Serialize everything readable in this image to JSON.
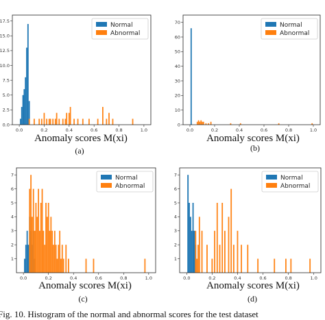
{
  "caption": "Fig. 10.   Histogram of the normal and abnormal scores for the test dataset",
  "colors": {
    "normal": "#1f77b4",
    "abnormal": "#ff7f0e"
  },
  "chart_data": [
    {
      "type": "bar",
      "xlabel": "Anomaly scores M(xi)",
      "sublabel": "(a)",
      "legend": "top-right",
      "xlim": [
        0,
        1
      ],
      "ylim": [
        0,
        18.5
      ],
      "xticks": [
        0.0,
        0.2,
        0.4,
        0.6,
        0.8,
        1.0
      ],
      "yticks": [
        0.0,
        2.5,
        5.0,
        7.5,
        10.0,
        12.5,
        15.0,
        17.5
      ],
      "ytick_labels": [
        "0.0",
        "2.5",
        "5.0",
        "7.5",
        "10.0",
        "12.5",
        "15.0",
        "17.5"
      ],
      "bin_width": 0.01,
      "series": [
        {
          "name": "Normal",
          "x": [
            0.01,
            0.02,
            0.03,
            0.04,
            0.05,
            0.06,
            0.07,
            0.08
          ],
          "values": [
            1,
            3,
            5,
            6,
            8,
            13,
            17,
            4
          ]
        },
        {
          "name": "Abnormal",
          "x": [
            0.08,
            0.12,
            0.16,
            0.18,
            0.2,
            0.22,
            0.24,
            0.25,
            0.27,
            0.29,
            0.3,
            0.32,
            0.35,
            0.37,
            0.38,
            0.4,
            0.41,
            0.44,
            0.47,
            0.51,
            0.56,
            0.63,
            0.67,
            0.7,
            0.72,
            0.75,
            0.91
          ],
          "values": [
            1,
            1,
            1,
            1,
            2,
            1,
            1,
            1,
            1,
            1,
            2,
            1,
            1,
            1,
            2,
            2,
            3,
            1,
            1,
            1,
            1,
            1,
            3,
            1,
            2,
            1,
            1
          ]
        }
      ]
    },
    {
      "type": "bar",
      "xlabel": "Anomaly scores M(xi)",
      "sublabel": "(b)",
      "legend": "top-right",
      "xlim": [
        0,
        1
      ],
      "ylim": [
        0,
        75
      ],
      "xticks": [
        0.0,
        0.2,
        0.4,
        0.6,
        0.8,
        1.0
      ],
      "yticks": [
        0,
        10,
        20,
        30,
        40,
        50,
        60,
        70
      ],
      "ytick_labels": [
        "0",
        "10",
        "20",
        "30",
        "40",
        "50",
        "60",
        "70"
      ],
      "bin_width": 0.01,
      "series": [
        {
          "name": "Normal",
          "x": [
            0.01
          ],
          "values": [
            66
          ]
        },
        {
          "name": "Abnormal",
          "x": [
            0.06,
            0.07,
            0.08,
            0.09,
            0.1,
            0.11,
            0.13,
            0.15,
            0.17,
            0.33,
            0.41,
            0.72,
            0.99
          ],
          "values": [
            2,
            3,
            2,
            3,
            2,
            2,
            1,
            1,
            2,
            1,
            1,
            1,
            1
          ]
        }
      ]
    },
    {
      "type": "bar",
      "xlabel": "Anomaly scores M(xi)",
      "sublabel": "(c)",
      "legend": "top-right",
      "xlim": [
        0,
        1
      ],
      "ylim": [
        0,
        7.5
      ],
      "xticks": [
        0.0,
        0.2,
        0.4,
        0.6,
        0.8,
        1.0
      ],
      "yticks": [
        1,
        2,
        3,
        4,
        5,
        6,
        7
      ],
      "ytick_labels": [
        "1",
        "2",
        "3",
        "4",
        "5",
        "6",
        "7"
      ],
      "bin_width": 0.01,
      "series": [
        {
          "name": "Normal",
          "x": [
            0.01,
            0.02,
            0.03,
            0.04,
            0.05,
            0.06,
            0.07,
            0.08,
            0.09
          ],
          "values": [
            1,
            2,
            3,
            2,
            4,
            3,
            2,
            3,
            1
          ]
        },
        {
          "name": "Abnormal",
          "x": [
            0.05,
            0.06,
            0.07,
            0.08,
            0.09,
            0.1,
            0.11,
            0.12,
            0.13,
            0.14,
            0.15,
            0.16,
            0.17,
            0.18,
            0.19,
            0.2,
            0.21,
            0.22,
            0.23,
            0.24,
            0.25,
            0.26,
            0.27,
            0.28,
            0.29,
            0.3,
            0.31,
            0.32,
            0.34,
            0.36,
            0.5,
            0.56,
            0.97
          ],
          "values": [
            6,
            7,
            4,
            6,
            3,
            5,
            4,
            6,
            3,
            5,
            6,
            3,
            2,
            5,
            4,
            5,
            3,
            4,
            3,
            2,
            3,
            2,
            1,
            2,
            3,
            1,
            2,
            1,
            2,
            1,
            1,
            1,
            1
          ]
        }
      ]
    },
    {
      "type": "bar",
      "xlabel": "Anomaly scores M(xi)",
      "sublabel": "(d)",
      "legend": "top-right",
      "xlim": [
        0,
        1
      ],
      "ylim": [
        0,
        7.5
      ],
      "xticks": [
        0.0,
        0.2,
        0.4,
        0.6,
        0.8,
        1.0
      ],
      "yticks": [
        1,
        2,
        3,
        4,
        5,
        6,
        7
      ],
      "ytick_labels": [
        "1",
        "2",
        "3",
        "4",
        "5",
        "6",
        "7"
      ],
      "bin_width": 0.01,
      "series": [
        {
          "name": "Normal",
          "x": [
            0.01,
            0.02,
            0.03,
            0.04,
            0.05,
            0.06,
            0.07
          ],
          "values": [
            7,
            5,
            4,
            3,
            5,
            3,
            2
          ]
        },
        {
          "name": "Abnormal",
          "x": [
            0.07,
            0.08,
            0.09,
            0.1,
            0.12,
            0.16,
            0.2,
            0.22,
            0.24,
            0.26,
            0.28,
            0.3,
            0.33,
            0.35,
            0.37,
            0.4,
            0.43,
            0.48,
            0.56,
            0.69,
            0.78,
            0.82,
            0.97
          ],
          "values": [
            3,
            1,
            2,
            4,
            3,
            2,
            1,
            3,
            5,
            2,
            5,
            3,
            4,
            6,
            2,
            3,
            2,
            2,
            1,
            1,
            1,
            1,
            1
          ]
        }
      ]
    }
  ]
}
